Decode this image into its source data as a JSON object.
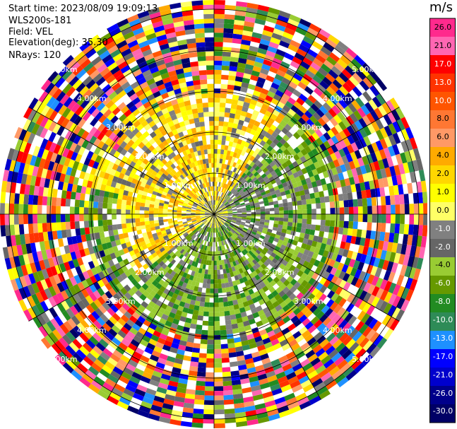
{
  "header": {
    "start_time": "Start time: 2023/08/09 19:09:13",
    "instrument": "WLS200s-181",
    "field": "Field: VEL",
    "elevation": "Elevation(deg): 35.30",
    "nrays": "NRays: 120"
  },
  "colorbar": {
    "unit": "m/s",
    "labels": [
      "26.0",
      "21.0",
      "17.0",
      "13.0",
      "10.0",
      "8.0",
      "6.0",
      "4.0",
      "2.0",
      "1.0",
      "0.0",
      "-1.0",
      "-2.0",
      "-4.0",
      "-6.0",
      "-8.0",
      "-10.0",
      "-13.0",
      "-17.0",
      "-21.0",
      "-26.0",
      "-30.0"
    ],
    "colors": [
      "#ff2a8d",
      "#ff66b2",
      "#ff0000",
      "#ff3300",
      "#ff5500",
      "#ff7733",
      "#ff9966",
      "#ffaa00",
      "#ffd700",
      "#ffff00",
      "#ffff66",
      "#808080",
      "#666666",
      "#99cc33",
      "#669900",
      "#228b22",
      "#2e8b57",
      "#1e90ff",
      "#0000ff",
      "#0000cd",
      "#00008b",
      "#000066"
    ]
  },
  "chart_data": {
    "type": "ppi",
    "title": "",
    "field": "VEL",
    "units": "m/s",
    "n_rays": 120,
    "elevation_deg": 35.3,
    "range_ring_labels": [
      "1.00km",
      "2.00km",
      "3.00km",
      "4.00km",
      "5.00km"
    ],
    "range_rings_km": [
      1,
      2,
      3,
      4,
      5
    ],
    "max_range_km": 6,
    "azimuth_step_deg": 30,
    "regions": [
      {
        "sector": "north-west / north",
        "range_km": "0.5-3.0",
        "dominant_value": "2.0 to 4.0 m/s (yellow)"
      },
      {
        "sector": "east / south-east / south",
        "range_km": "0.5-3.0",
        "dominant_value": "-2.0 to -4.0 m/s (green)"
      },
      {
        "sector": "center / east",
        "range_km": "0-2.0",
        "dominant_value": "0.0 to -1.0 m/s (grey)"
      },
      {
        "sector": "all",
        "range_km": "3.0-6.0",
        "dominant_value": "noise, all values"
      }
    ]
  }
}
